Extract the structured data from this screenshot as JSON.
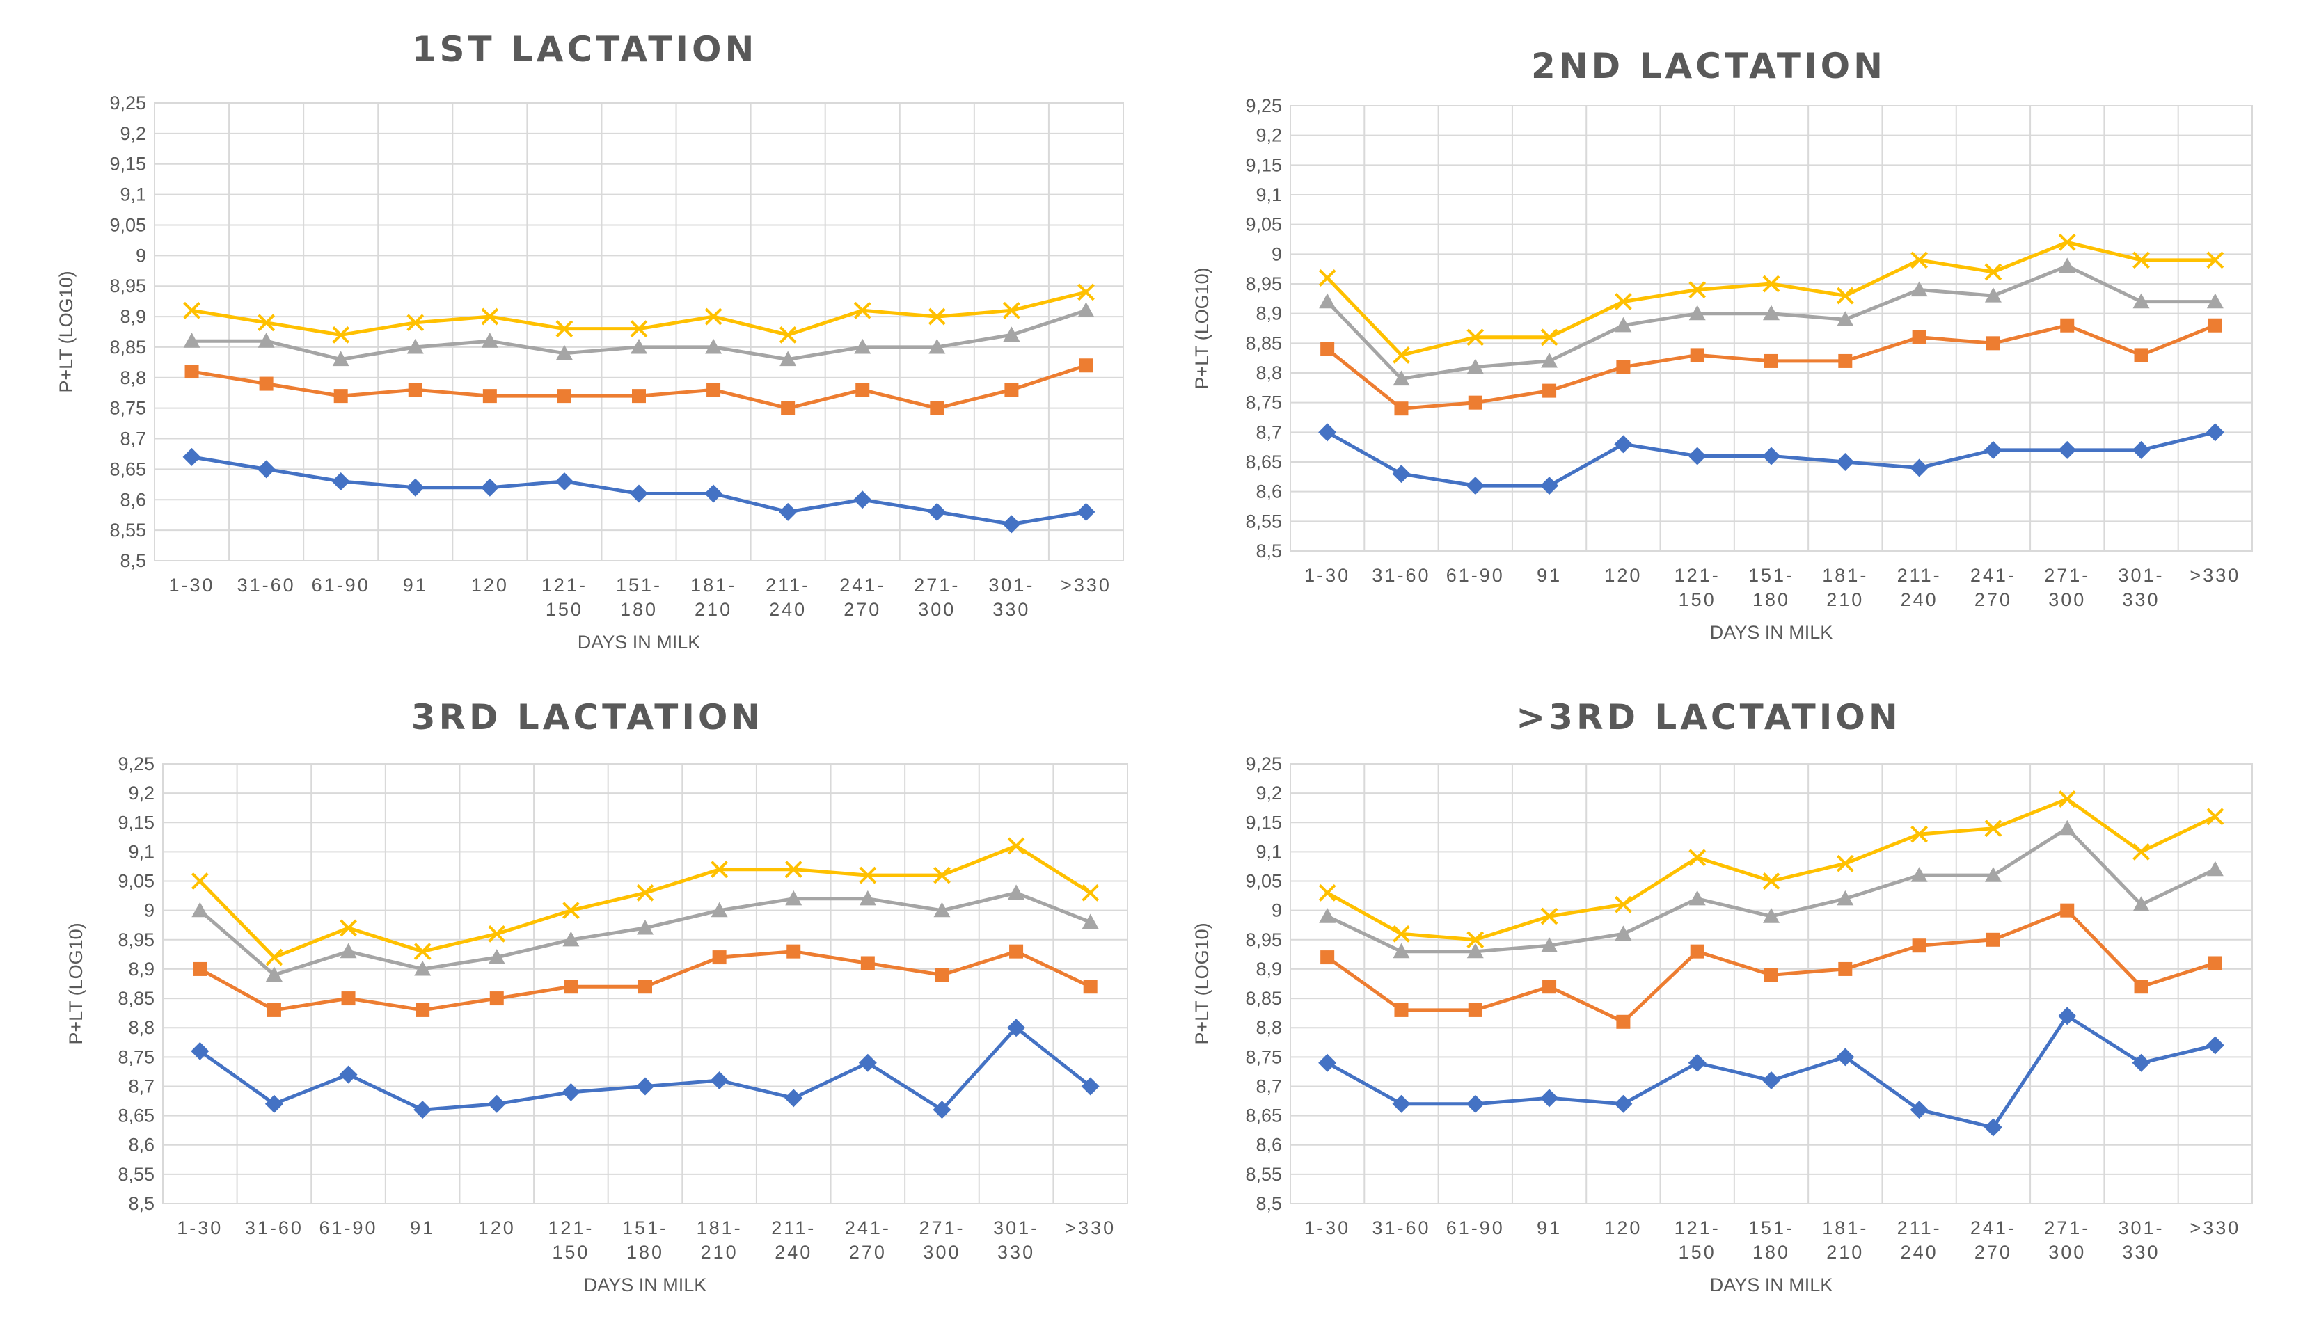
{
  "chart_data": [
    {
      "type": "line",
      "title": "1ST LACTATION",
      "xlabel": "DAYS IN MILK",
      "ylabel": "P+LT (LOG10)",
      "ylim": [
        8.5,
        9.25
      ],
      "yticks": [
        "9,25",
        "9,2",
        "9,15",
        "9,1",
        "9,05",
        "9",
        "8,95",
        "8,9",
        "8,85",
        "8,8",
        "8,75",
        "8,7",
        "8,65",
        "8,6",
        "8,55",
        "8,5"
      ],
      "categories": [
        [
          "1-30"
        ],
        [
          "31-60"
        ],
        [
          "61-90"
        ],
        [
          "91"
        ],
        [
          "120"
        ],
        [
          "121-",
          "150"
        ],
        [
          "151-",
          "180"
        ],
        [
          "181-",
          "210"
        ],
        [
          "211-",
          "240"
        ],
        [
          "241-",
          "270"
        ],
        [
          "271-",
          "300"
        ],
        [
          "301-",
          "330"
        ],
        [
          ">330"
        ]
      ],
      "grid": true,
      "series": [
        {
          "color": "#4472C4",
          "marker": "diamond",
          "values": [
            8.67,
            8.65,
            8.63,
            8.62,
            8.62,
            8.63,
            8.61,
            8.61,
            8.58,
            8.6,
            8.58,
            8.56,
            8.58
          ]
        },
        {
          "color": "#ED7D31",
          "marker": "square",
          "values": [
            8.81,
            8.79,
            8.77,
            8.78,
            8.77,
            8.77,
            8.77,
            8.78,
            8.75,
            8.78,
            8.75,
            8.78,
            8.82
          ]
        },
        {
          "color": "#A5A5A5",
          "marker": "triangle",
          "values": [
            8.86,
            8.86,
            8.83,
            8.85,
            8.86,
            8.84,
            8.85,
            8.85,
            8.83,
            8.85,
            8.85,
            8.87,
            8.91
          ]
        },
        {
          "color": "#FFC000",
          "marker": "x",
          "values": [
            8.91,
            8.89,
            8.87,
            8.89,
            8.9,
            8.88,
            8.88,
            8.9,
            8.87,
            8.91,
            8.9,
            8.91,
            8.94
          ]
        }
      ]
    },
    {
      "type": "line",
      "title": "2ND LACTATION",
      "xlabel": "DAYS IN MILK",
      "ylabel": "P+LT (LOG10)",
      "ylim": [
        8.5,
        9.25
      ],
      "yticks": [
        "9,25",
        "9,2",
        "9,15",
        "9,1",
        "9,05",
        "9",
        "8,95",
        "8,9",
        "8,85",
        "8,8",
        "8,75",
        "8,7",
        "8,65",
        "8,6",
        "8,55",
        "8,5"
      ],
      "categories": [
        [
          "1-30"
        ],
        [
          "31-60"
        ],
        [
          "61-90"
        ],
        [
          "91"
        ],
        [
          "120"
        ],
        [
          "121-",
          "150"
        ],
        [
          "151-",
          "180"
        ],
        [
          "181-",
          "210"
        ],
        [
          "211-",
          "240"
        ],
        [
          "241-",
          "270"
        ],
        [
          "271-",
          "300"
        ],
        [
          "301-",
          "330"
        ],
        [
          ">330"
        ]
      ],
      "grid": true,
      "series": [
        {
          "color": "#4472C4",
          "marker": "diamond",
          "values": [
            8.7,
            8.63,
            8.61,
            8.61,
            8.68,
            8.66,
            8.66,
            8.65,
            8.64,
            8.67,
            8.67,
            8.67,
            8.7
          ]
        },
        {
          "color": "#ED7D31",
          "marker": "square",
          "values": [
            8.84,
            8.74,
            8.75,
            8.77,
            8.81,
            8.83,
            8.82,
            8.82,
            8.86,
            8.85,
            8.88,
            8.83,
            8.88
          ]
        },
        {
          "color": "#A5A5A5",
          "marker": "triangle",
          "values": [
            8.92,
            8.79,
            8.81,
            8.82,
            8.88,
            8.9,
            8.9,
            8.89,
            8.94,
            8.93,
            8.98,
            8.92,
            8.92
          ]
        },
        {
          "color": "#FFC000",
          "marker": "x",
          "values": [
            8.96,
            8.83,
            8.86,
            8.86,
            8.92,
            8.94,
            8.95,
            8.93,
            8.99,
            8.97,
            9.02,
            8.99,
            8.99
          ]
        }
      ]
    },
    {
      "type": "line",
      "title": "3RD LACTATION",
      "xlabel": "DAYS IN MILK",
      "ylabel": "P+LT (LOG10)",
      "ylim": [
        8.5,
        9.25
      ],
      "yticks": [
        "9,25",
        "9,2",
        "9,15",
        "9,1",
        "9,05",
        "9",
        "8,95",
        "8,9",
        "8,85",
        "8,8",
        "8,75",
        "8,7",
        "8,65",
        "8,6",
        "8,55",
        "8,5"
      ],
      "categories": [
        [
          "1-30"
        ],
        [
          "31-60"
        ],
        [
          "61-90"
        ],
        [
          "91"
        ],
        [
          "120"
        ],
        [
          "121-",
          "150"
        ],
        [
          "151-",
          "180"
        ],
        [
          "181-",
          "210"
        ],
        [
          "211-",
          "240"
        ],
        [
          "241-",
          "270"
        ],
        [
          "271-",
          "300"
        ],
        [
          "301-",
          "330"
        ],
        [
          ">330"
        ]
      ],
      "grid": true,
      "series": [
        {
          "color": "#4472C4",
          "marker": "diamond",
          "values": [
            8.76,
            8.67,
            8.72,
            8.66,
            8.67,
            8.69,
            8.7,
            8.71,
            8.68,
            8.74,
            8.66,
            8.8,
            8.7
          ]
        },
        {
          "color": "#ED7D31",
          "marker": "square",
          "values": [
            8.9,
            8.83,
            8.85,
            8.83,
            8.85,
            8.87,
            8.87,
            8.92,
            8.93,
            8.91,
            8.89,
            8.93,
            8.87
          ]
        },
        {
          "color": "#A5A5A5",
          "marker": "triangle",
          "values": [
            9.0,
            8.89,
            8.93,
            8.9,
            8.92,
            8.95,
            8.97,
            9.0,
            9.02,
            9.02,
            9.0,
            9.03,
            8.98
          ]
        },
        {
          "color": "#FFC000",
          "marker": "x",
          "values": [
            9.05,
            8.92,
            8.97,
            8.93,
            8.96,
            9.0,
            9.03,
            9.07,
            9.07,
            9.06,
            9.06,
            9.11,
            9.03
          ]
        }
      ]
    },
    {
      "type": "line",
      "title": ">3RD LACTATION",
      "xlabel": "DAYS IN MILK",
      "ylabel": "P+LT (LOG10)",
      "ylim": [
        8.5,
        9.25
      ],
      "yticks": [
        "9,25",
        "9,2",
        "9,15",
        "9,1",
        "9,05",
        "9",
        "8,95",
        "8,9",
        "8,85",
        "8,8",
        "8,75",
        "8,7",
        "8,65",
        "8,6",
        "8,55",
        "8,5"
      ],
      "categories": [
        [
          "1-30"
        ],
        [
          "31-60"
        ],
        [
          "61-90"
        ],
        [
          "91"
        ],
        [
          "120"
        ],
        [
          "121-",
          "150"
        ],
        [
          "151-",
          "180"
        ],
        [
          "181-",
          "210"
        ],
        [
          "211-",
          "240"
        ],
        [
          "241-",
          "270"
        ],
        [
          "271-",
          "300"
        ],
        [
          "301-",
          "330"
        ],
        [
          ">330"
        ]
      ],
      "grid": true,
      "series": [
        {
          "color": "#4472C4",
          "marker": "diamond",
          "values": [
            8.74,
            8.67,
            8.67,
            8.68,
            8.67,
            8.74,
            8.71,
            8.75,
            8.66,
            8.63,
            8.82,
            8.74,
            8.77
          ]
        },
        {
          "color": "#ED7D31",
          "marker": "square",
          "values": [
            8.92,
            8.83,
            8.83,
            8.87,
            8.81,
            8.93,
            8.89,
            8.9,
            8.94,
            8.95,
            9.0,
            8.87,
            8.91
          ]
        },
        {
          "color": "#A5A5A5",
          "marker": "triangle",
          "values": [
            8.99,
            8.93,
            8.93,
            8.94,
            8.96,
            9.02,
            8.99,
            9.02,
            9.06,
            9.06,
            9.14,
            9.01,
            9.07
          ]
        },
        {
          "color": "#FFC000",
          "marker": "x",
          "values": [
            9.03,
            8.96,
            8.95,
            8.99,
            9.01,
            9.09,
            9.05,
            9.08,
            9.13,
            9.14,
            9.19,
            9.1,
            9.16
          ]
        }
      ]
    }
  ]
}
